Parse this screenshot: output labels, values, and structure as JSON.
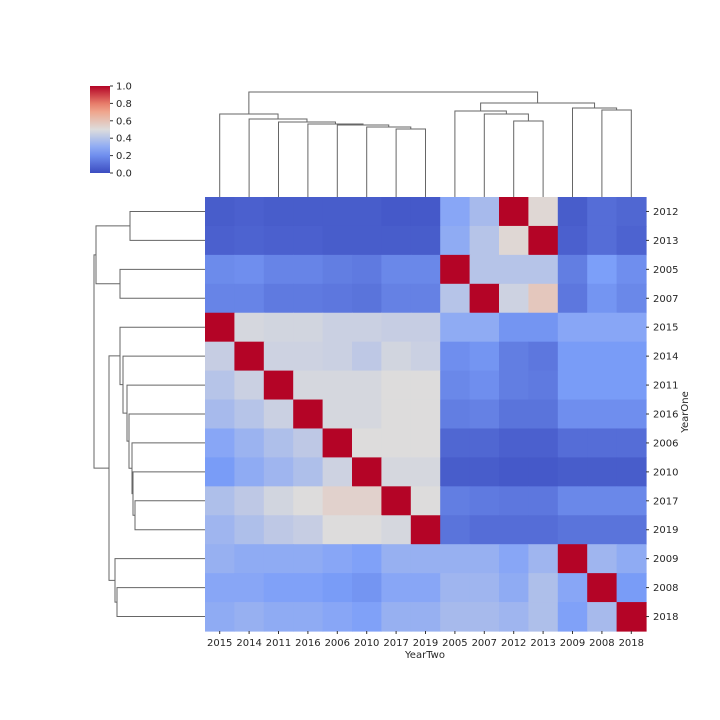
{
  "chart_data": {
    "type": "heatmap",
    "title": "",
    "xlabel": "YearTwo",
    "ylabel": "YearOne",
    "x_categories": [
      "2015",
      "2014",
      "2011",
      "2016",
      "2006",
      "2010",
      "2017",
      "2019",
      "2005",
      "2007",
      "2012",
      "2013",
      "2009",
      "2008",
      "2018"
    ],
    "y_categories": [
      "2012",
      "2013",
      "2005",
      "2007",
      "2015",
      "2014",
      "2011",
      "2016",
      "2006",
      "2010",
      "2017",
      "2019",
      "2009",
      "2008",
      "2018"
    ],
    "values": [
      [
        0.05,
        0.06,
        0.05,
        0.05,
        0.05,
        0.05,
        0.04,
        0.04,
        0.28,
        0.36,
        1.0,
        0.52,
        0.05,
        0.1,
        0.08
      ],
      [
        0.06,
        0.07,
        0.06,
        0.06,
        0.05,
        0.05,
        0.05,
        0.05,
        0.3,
        0.4,
        0.52,
        1.0,
        0.06,
        0.1,
        0.07
      ],
      [
        0.19,
        0.2,
        0.17,
        0.17,
        0.15,
        0.14,
        0.18,
        0.18,
        1.0,
        0.4,
        0.4,
        0.4,
        0.15,
        0.25,
        0.2
      ],
      [
        0.17,
        0.17,
        0.14,
        0.14,
        0.13,
        0.12,
        0.16,
        0.16,
        0.4,
        1.0,
        0.46,
        0.58,
        0.13,
        0.22,
        0.18
      ],
      [
        1.0,
        0.48,
        0.47,
        0.47,
        0.45,
        0.45,
        0.44,
        0.44,
        0.3,
        0.3,
        0.22,
        0.22,
        0.28,
        0.28,
        0.28
      ],
      [
        0.44,
        1.0,
        0.46,
        0.46,
        0.45,
        0.42,
        0.47,
        0.45,
        0.2,
        0.22,
        0.15,
        0.13,
        0.24,
        0.24,
        0.24
      ],
      [
        0.4,
        0.45,
        1.0,
        0.48,
        0.48,
        0.48,
        0.5,
        0.5,
        0.18,
        0.2,
        0.15,
        0.14,
        0.24,
        0.24,
        0.24
      ],
      [
        0.36,
        0.4,
        0.45,
        1.0,
        0.48,
        0.48,
        0.5,
        0.5,
        0.15,
        0.16,
        0.12,
        0.12,
        0.2,
        0.2,
        0.2
      ],
      [
        0.28,
        0.33,
        0.38,
        0.42,
        1.0,
        0.5,
        0.5,
        0.5,
        0.08,
        0.08,
        0.06,
        0.06,
        0.1,
        0.1,
        0.1
      ],
      [
        0.24,
        0.3,
        0.34,
        0.38,
        0.46,
        1.0,
        0.48,
        0.48,
        0.05,
        0.05,
        0.04,
        0.04,
        0.05,
        0.05,
        0.05
      ],
      [
        0.38,
        0.42,
        0.47,
        0.5,
        0.54,
        0.54,
        1.0,
        0.5,
        0.15,
        0.14,
        0.13,
        0.13,
        0.18,
        0.18,
        0.18
      ],
      [
        0.34,
        0.38,
        0.42,
        0.44,
        0.5,
        0.5,
        0.48,
        1.0,
        0.12,
        0.1,
        0.1,
        0.1,
        0.12,
        0.12,
        0.12
      ],
      [
        0.32,
        0.3,
        0.3,
        0.3,
        0.28,
        0.26,
        0.32,
        0.32,
        0.32,
        0.32,
        0.28,
        0.34,
        1.0,
        0.34,
        0.3
      ],
      [
        0.28,
        0.28,
        0.26,
        0.26,
        0.24,
        0.22,
        0.28,
        0.28,
        0.34,
        0.34,
        0.3,
        0.38,
        0.28,
        1.0,
        0.24
      ],
      [
        0.3,
        0.32,
        0.3,
        0.3,
        0.28,
        0.26,
        0.32,
        0.32,
        0.36,
        0.36,
        0.34,
        0.38,
        0.26,
        0.36,
        1.0
      ]
    ],
    "colormap": "coolwarm",
    "colorbar": {
      "range": [
        0.0,
        1.0
      ],
      "ticks": [
        "0.0",
        "0.2",
        "0.4",
        "0.6",
        "0.8",
        "1.0"
      ],
      "placement": "top-left"
    },
    "dendrogram": {
      "column_clusters": [
        [
          "2015",
          "2014",
          "2011",
          "2016",
          "2006",
          "2010",
          "2017",
          "2019"
        ],
        [
          "2005",
          "2007",
          "2012",
          "2013"
        ],
        [
          "2009",
          "2008",
          "2018"
        ]
      ],
      "row_clusters": [
        [
          "2012",
          "2013",
          "2005",
          "2007"
        ],
        [
          "2015",
          "2014",
          "2011",
          "2016",
          "2006",
          "2010",
          "2017",
          "2019"
        ],
        [
          "2009",
          "2008",
          "2018"
        ]
      ]
    },
    "grid": false
  }
}
